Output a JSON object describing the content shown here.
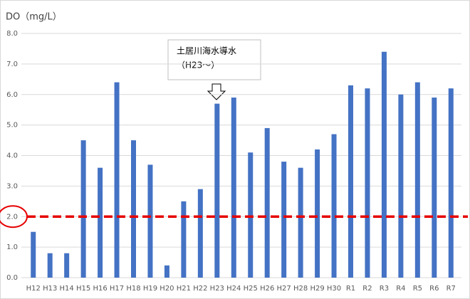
{
  "chart_data": {
    "type": "bar",
    "y_title": "DO（mg/L）",
    "categories": [
      "H12",
      "H13",
      "H14",
      "H15",
      "H16",
      "H17",
      "H18",
      "H19",
      "H20",
      "H21",
      "H22",
      "H23",
      "H24",
      "H25",
      "H26",
      "H27",
      "H28",
      "H29",
      "H30",
      "R1",
      "R2",
      "R3",
      "R4",
      "R5",
      "R6",
      "R7"
    ],
    "values": [
      1.5,
      0.8,
      0.8,
      4.5,
      3.6,
      6.4,
      4.5,
      3.7,
      0.4,
      2.5,
      2.9,
      5.7,
      5.9,
      4.1,
      4.9,
      3.8,
      3.6,
      4.2,
      4.7,
      6.3,
      6.2,
      7.4,
      6.0,
      6.4,
      5.9,
      6.2
    ],
    "color": "#4472c4",
    "ylim": [
      0,
      8
    ],
    "yticks": [
      {
        "value": 0,
        "label": "0.0"
      },
      {
        "value": 1,
        "label": "1.0"
      },
      {
        "value": 2,
        "label": "2.0"
      },
      {
        "value": 3,
        "label": "3.0"
      },
      {
        "value": 4,
        "label": "4.0"
      },
      {
        "value": 5,
        "label": "5.0"
      },
      {
        "value": 6,
        "label": "6.0"
      },
      {
        "value": 7,
        "label": "7.0"
      },
      {
        "value": 8,
        "label": "8.0"
      }
    ],
    "grid": true,
    "reference_line": {
      "value": 2,
      "color": "#e60000"
    },
    "annotation": [
      "土居川海水導水",
      "（H23～）"
    ]
  }
}
